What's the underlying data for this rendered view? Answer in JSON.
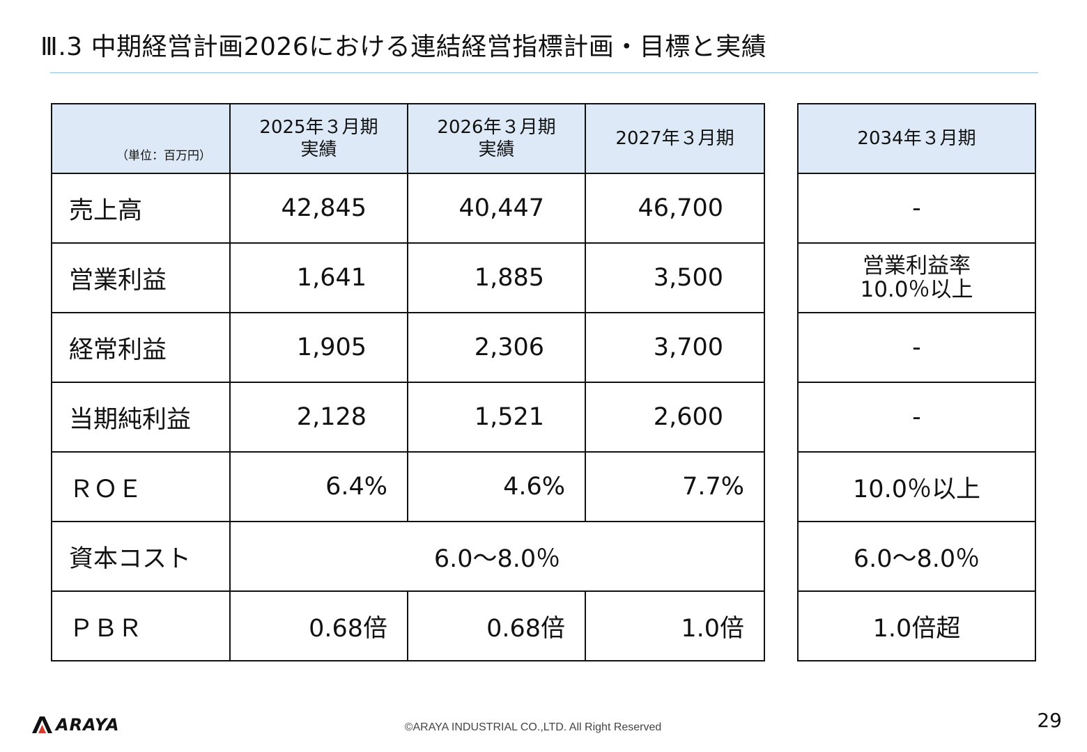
{
  "slide": {
    "title": "Ⅲ.3 中期経営計画2026における連結経営指標計画・目標と実績",
    "page_number": "29",
    "copyright": "©ARAYA INDUSTRIAL CO.,LTD. All Right Reserved",
    "logo_text": "ARAYA"
  },
  "table": {
    "unit": "（単位：百万円）",
    "headers": [
      "2025年３月期\n実績",
      "2026年３月期\n実績",
      "2027年３月期"
    ],
    "target_header": "2034年３月期",
    "rows": [
      {
        "label": "売上高",
        "values": [
          "42,845",
          "40,447",
          "46,700"
        ],
        "target": "-"
      },
      {
        "label": "営業利益",
        "values": [
          "1,641",
          "1,885",
          "3,500"
        ],
        "target": "営業利益率\n10.0％以上"
      },
      {
        "label": "経常利益",
        "values": [
          "1,905",
          "2,306",
          "3,700"
        ],
        "target": "-"
      },
      {
        "label": "当期純利益",
        "values": [
          "2,128",
          "1,521",
          "2,600"
        ],
        "target": "-"
      },
      {
        "label": "ＲＯＥ",
        "values": [
          "6.4%",
          "4.6%",
          "7.7%"
        ],
        "target": "10.0％以上"
      },
      {
        "label": "資本コスト",
        "merged_value": "6.0～8.0％",
        "target": "6.0～8.0％"
      },
      {
        "label": "ＰＢＲ",
        "values": [
          "0.68倍",
          "0.68倍",
          "1.0倍"
        ],
        "target": "1.0倍超"
      }
    ]
  }
}
